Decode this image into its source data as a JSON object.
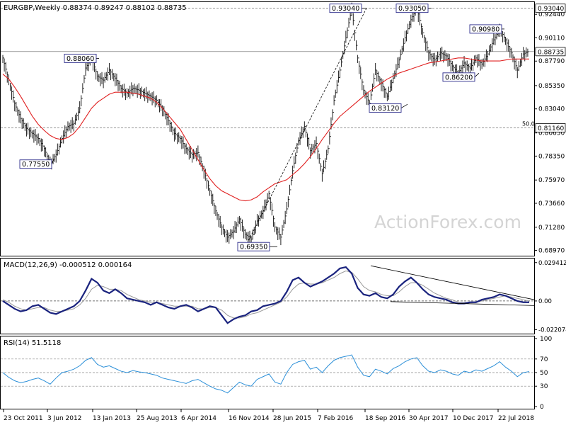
{
  "chart_data": [
    {
      "type": "line",
      "panel": "price",
      "header": {
        "symbol": "EURGBP,Weekly",
        "open": "0.88374",
        "high": "0.89247",
        "low": "0.88102",
        "close": "0.88735"
      },
      "ylim": [
        0.6845,
        0.9365
      ],
      "y_ticks": [
        "0.92440",
        "0.90110",
        "0.87790",
        "0.85350",
        "0.83040",
        "0.80650",
        "0.78350",
        "0.75970",
        "0.73660",
        "0.71280",
        "0.68970"
      ],
      "x_ticks": [
        "23 Oct 2011",
        "3 Jun 2012",
        "13 Jan 2013",
        "25 Aug 2013",
        "6 Apr 2014",
        "16 Nov 2014",
        "28 Jun 2015",
        "7 Feb 2016",
        "18 Sep 2016",
        "30 Apr 2017",
        "10 Dec 2017",
        "22 Jul 2018"
      ],
      "marker_labels": {
        "high_2016": "0.93040",
        "high_2017": "0.93050",
        "high_2018": "0.90980",
        "high_2012": "0.88060",
        "low_2018": "0.86200",
        "low_2016": "0.83120",
        "low_2012": "0.77550",
        "low_2015": "0.69350"
      },
      "horizontal_levels": {
        "resistance": "0.93040",
        "current": "0.88735",
        "fibonacci": "0.81160",
        "fibonacci_label": "50.0"
      },
      "price_series": [
        0.88,
        0.858,
        0.835,
        0.82,
        0.81,
        0.805,
        0.8,
        0.79,
        0.775,
        0.784,
        0.8,
        0.812,
        0.815,
        0.83,
        0.87,
        0.88,
        0.862,
        0.858,
        0.868,
        0.86,
        0.85,
        0.845,
        0.85,
        0.848,
        0.845,
        0.842,
        0.838,
        0.83,
        0.818,
        0.805,
        0.8,
        0.79,
        0.784,
        0.786,
        0.768,
        0.748,
        0.728,
        0.712,
        0.702,
        0.708,
        0.72,
        0.705,
        0.7,
        0.718,
        0.728,
        0.745,
        0.712,
        0.702,
        0.73,
        0.768,
        0.798,
        0.812,
        0.788,
        0.795,
        0.765,
        0.79,
        0.838,
        0.868,
        0.9,
        0.93,
        0.88,
        0.848,
        0.835,
        0.868,
        0.855,
        0.842,
        0.86,
        0.878,
        0.9,
        0.918,
        0.93,
        0.905,
        0.885,
        0.878,
        0.885,
        0.882,
        0.872,
        0.865,
        0.875,
        0.87,
        0.88,
        0.874,
        0.884,
        0.898,
        0.909,
        0.898,
        0.885,
        0.868,
        0.884,
        0.887
      ],
      "ma_series": [
        0.865,
        0.86,
        0.852,
        0.843,
        0.833,
        0.823,
        0.815,
        0.809,
        0.804,
        0.801,
        0.8,
        0.802,
        0.806,
        0.813,
        0.822,
        0.831,
        0.837,
        0.841,
        0.845,
        0.847,
        0.847,
        0.847,
        0.846,
        0.845,
        0.843,
        0.841,
        0.837,
        0.831,
        0.824,
        0.817,
        0.81,
        0.8,
        0.79,
        0.78,
        0.77,
        0.761,
        0.754,
        0.749,
        0.746,
        0.743,
        0.74,
        0.739,
        0.74,
        0.743,
        0.748,
        0.752,
        0.756,
        0.758,
        0.76,
        0.765,
        0.77,
        0.776,
        0.783,
        0.791,
        0.8,
        0.808,
        0.816,
        0.823,
        0.828,
        0.833,
        0.838,
        0.843,
        0.848,
        0.852,
        0.856,
        0.86,
        0.863,
        0.866,
        0.868,
        0.87,
        0.872,
        0.874,
        0.876,
        0.877,
        0.878,
        0.879,
        0.88,
        0.881,
        0.881,
        0.88,
        0.879,
        0.878,
        0.878,
        0.878,
        0.878,
        0.879,
        0.88,
        0.88,
        0.88,
        0.88
      ],
      "watermark": "ActionForex.com"
    },
    {
      "type": "line",
      "panel": "macd",
      "label": "MACD(12,26,9) -0.000512 0.000164",
      "ylim": [
        -0.0245,
        0.032
      ],
      "y_ticks": [
        "0.029412",
        "0.00",
        "-0.022074"
      ],
      "macd_series": [
        0.0,
        -0.003,
        -0.006,
        -0.008,
        -0.007,
        -0.004,
        -0.003,
        -0.006,
        -0.009,
        -0.01,
        -0.008,
        -0.006,
        -0.004,
        0.0,
        0.008,
        0.017,
        0.014,
        0.008,
        0.006,
        0.009,
        0.006,
        0.002,
        0.001,
        0.0,
        -0.001,
        -0.003,
        -0.001,
        -0.003,
        -0.005,
        -0.006,
        -0.004,
        -0.003,
        -0.005,
        -0.008,
        -0.006,
        -0.004,
        -0.005,
        -0.011,
        -0.017,
        -0.014,
        -0.012,
        -0.011,
        -0.008,
        -0.007,
        -0.004,
        -0.003,
        -0.002,
        0.0,
        0.007,
        0.016,
        0.018,
        0.014,
        0.011,
        0.013,
        0.015,
        0.018,
        0.021,
        0.025,
        0.026,
        0.021,
        0.01,
        0.005,
        0.004,
        0.006,
        0.003,
        0.002,
        0.005,
        0.011,
        0.015,
        0.018,
        0.014,
        0.009,
        0.005,
        0.003,
        0.002,
        0.001,
        -0.001,
        -0.002,
        -0.002,
        -0.001,
        -0.001,
        0.001,
        0.002,
        0.003,
        0.005,
        0.004,
        0.002,
        0.0,
        -0.001,
        -0.001
      ],
      "signal_series": [
        0.001,
        -0.001,
        -0.004,
        -0.006,
        -0.007,
        -0.006,
        -0.005,
        -0.005,
        -0.007,
        -0.008,
        -0.008,
        -0.007,
        -0.006,
        -0.003,
        0.002,
        0.009,
        0.012,
        0.011,
        0.009,
        0.009,
        0.008,
        0.005,
        0.003,
        0.001,
        0.0,
        -0.001,
        -0.001,
        -0.002,
        -0.003,
        -0.004,
        -0.004,
        -0.004,
        -0.004,
        -0.006,
        -0.006,
        -0.005,
        -0.005,
        -0.007,
        -0.011,
        -0.013,
        -0.013,
        -0.012,
        -0.01,
        -0.009,
        -0.007,
        -0.005,
        -0.003,
        -0.001,
        0.003,
        0.009,
        0.013,
        0.014,
        0.013,
        0.013,
        0.014,
        0.016,
        0.018,
        0.021,
        0.023,
        0.022,
        0.017,
        0.011,
        0.008,
        0.007,
        0.005,
        0.004,
        0.004,
        0.007,
        0.011,
        0.014,
        0.014,
        0.012,
        0.009,
        0.006,
        0.004,
        0.002,
        0.001,
        -0.001,
        -0.001,
        -0.001,
        -0.001,
        0.0,
        0.001,
        0.002,
        0.003,
        0.004,
        0.003,
        0.002,
        0.001,
        0.0
      ]
    },
    {
      "type": "line",
      "panel": "rsi",
      "label": "RSI(14) 51.5118",
      "ylim": [
        0,
        100
      ],
      "y_ticks": [
        "100",
        "70",
        "50",
        "30",
        "0"
      ],
      "guide_levels": [
        70,
        50,
        30
      ],
      "rsi_series": [
        50,
        43,
        38,
        35,
        37,
        40,
        42,
        38,
        33,
        42,
        50,
        52,
        55,
        60,
        68,
        72,
        62,
        58,
        60,
        56,
        52,
        50,
        53,
        51,
        50,
        48,
        46,
        42,
        40,
        38,
        36,
        34,
        38,
        40,
        35,
        30,
        26,
        24,
        20,
        28,
        36,
        32,
        30,
        40,
        44,
        48,
        36,
        33,
        50,
        62,
        66,
        68,
        55,
        58,
        50,
        60,
        68,
        72,
        74,
        76,
        58,
        46,
        44,
        55,
        52,
        48,
        56,
        60,
        66,
        70,
        72,
        60,
        52,
        50,
        54,
        52,
        48,
        46,
        52,
        50,
        54,
        52,
        56,
        60,
        66,
        58,
        52,
        44,
        50,
        51.5
      ]
    }
  ]
}
